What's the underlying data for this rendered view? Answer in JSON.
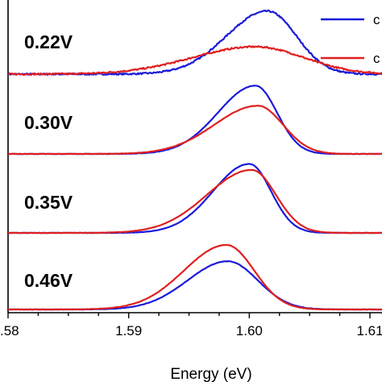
{
  "chart_data": {
    "type": "line",
    "xlabel": "Energy (eV)",
    "xlim": [
      1.58,
      1.611
    ],
    "x_ticks": [
      ".58",
      "1.59",
      "1.60",
      "1.61"
    ],
    "x_tick_values": [
      1.58,
      1.59,
      1.6,
      1.61
    ],
    "grid": false,
    "legend_position": "top-right",
    "legend": [
      {
        "label": "c",
        "color": "#1a1adb"
      },
      {
        "label": "c",
        "color": "#e02020"
      }
    ],
    "series_colors": {
      "blue": "#1a1adb",
      "red": "#e02020"
    },
    "panels": [
      {
        "label": "0.22V",
        "blue": {
          "peak": 1.6015,
          "amplitude": 0.85,
          "sigma_left": 0.0034,
          "sigma_right": 0.0024,
          "noise": 0.02
        },
        "red": {
          "peak": 1.6005,
          "amplitude": 0.37,
          "sigma_left": 0.0052,
          "sigma_right": 0.004,
          "noise": 0.02
        }
      },
      {
        "label": "0.30V",
        "blue": {
          "peak": 1.6005,
          "amplitude": 0.92,
          "sigma_left": 0.0031,
          "sigma_right": 0.0018,
          "noise": 0.004
        },
        "red": {
          "peak": 1.6007,
          "amplitude": 0.65,
          "sigma_left": 0.0036,
          "sigma_right": 0.0021,
          "noise": 0.004
        }
      },
      {
        "label": "0.35V",
        "blue": {
          "peak": 1.6,
          "amplitude": 0.93,
          "sigma_left": 0.003,
          "sigma_right": 0.0018,
          "noise": 0.004
        },
        "red": {
          "peak": 1.6002,
          "amplitude": 0.85,
          "sigma_left": 0.0037,
          "sigma_right": 0.002,
          "noise": 0.004
        }
      },
      {
        "label": "0.46V",
        "blue": {
          "peak": 1.5982,
          "amplitude": 0.65,
          "sigma_left": 0.0033,
          "sigma_right": 0.0025,
          "noise": 0.004
        },
        "red": {
          "peak": 1.5981,
          "amplitude": 0.87,
          "sigma_left": 0.0035,
          "sigma_right": 0.0023,
          "noise": 0.004
        }
      }
    ]
  }
}
